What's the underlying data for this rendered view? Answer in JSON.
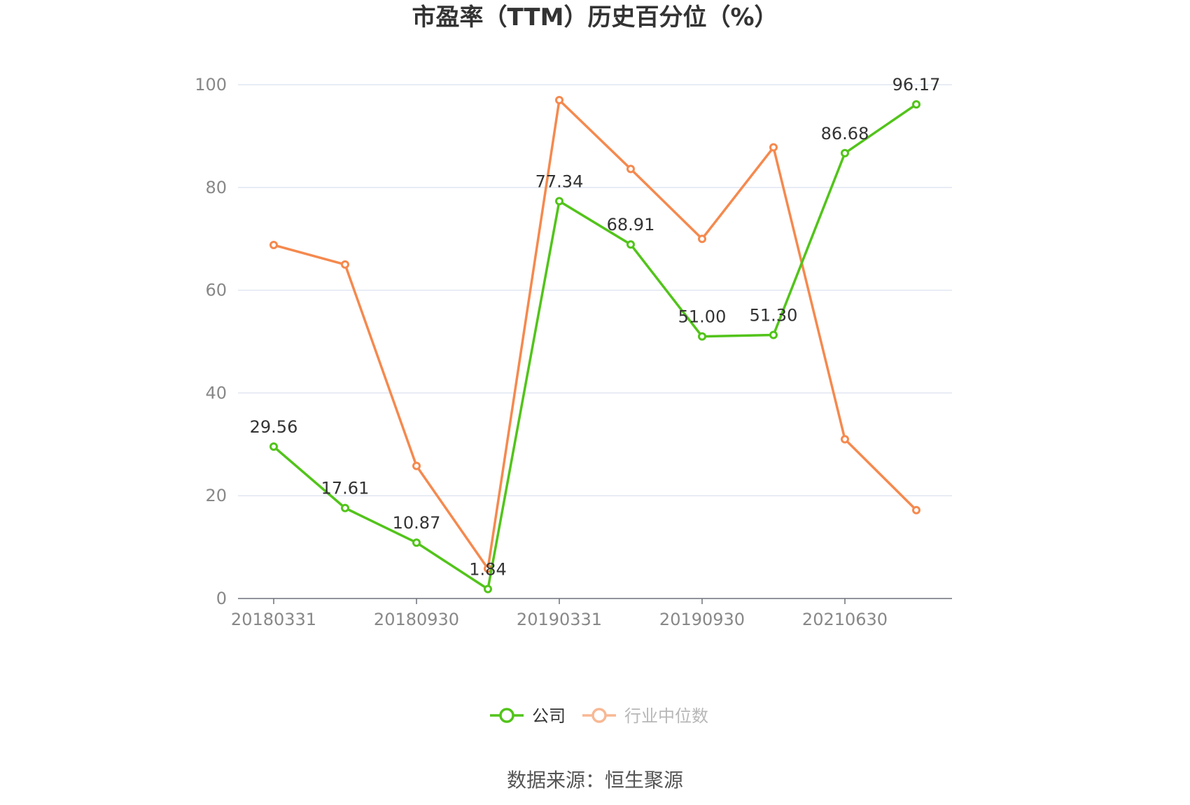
{
  "chart_data": {
    "type": "line",
    "title": "市盈率（TTM）历史百分位（%）",
    "source": "数据来源：恒生聚源",
    "categories": [
      "20180331",
      "",
      "20180930",
      "",
      "20190331",
      "",
      "20190930",
      "",
      "20210630",
      ""
    ],
    "x_tick_labels": [
      "20180331",
      "20180930",
      "20190331",
      "20190930",
      "20210630"
    ],
    "ylim": [
      0,
      100
    ],
    "y_ticks": [
      0,
      20,
      40,
      60,
      80,
      100
    ],
    "grid": true,
    "legend_position": "bottom-center",
    "series": [
      {
        "name": "公司",
        "color": "#52c41a",
        "show_labels": true,
        "values": [
          29.56,
          17.61,
          10.87,
          1.84,
          77.34,
          68.91,
          51.0,
          51.3,
          86.68,
          96.17
        ],
        "labels": [
          "29.56",
          "17.61",
          "10.87",
          "1.84",
          "77.34",
          "68.91",
          "51.00",
          "51.30",
          "86.68",
          "96.17"
        ]
      },
      {
        "name": "行业中位数",
        "color": "#f5894e",
        "show_labels": false,
        "values": [
          68.8,
          65.0,
          25.8,
          5.8,
          97.0,
          83.6,
          70.0,
          87.8,
          31.0,
          17.2
        ]
      }
    ]
  }
}
